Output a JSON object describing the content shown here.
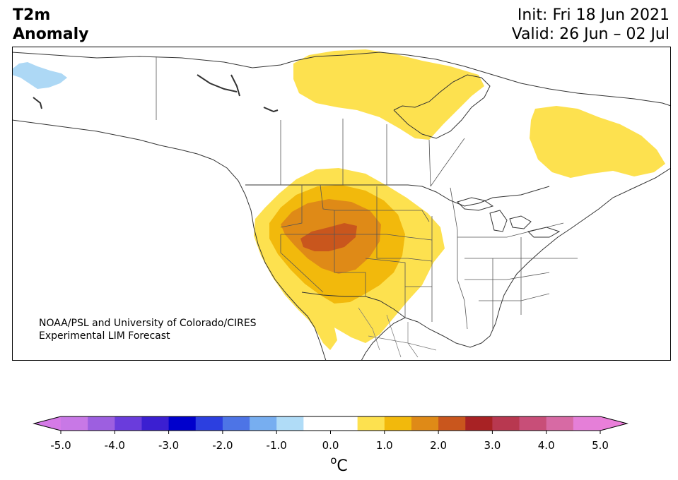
{
  "title": {
    "line1": "T2m",
    "line2": "Anomaly"
  },
  "dates": {
    "init": "Init: Fri 18 Jun 2021",
    "valid": "Valid: 26 Jun – 02 Jul"
  },
  "credit": {
    "line1": "NOAA/PSL and University of Colorado/CIRES",
    "line2": "Experimental LIM Forecast"
  },
  "colorbar": {
    "unit": "oC",
    "ticks": [
      "-5.0",
      "-4.0",
      "-3.0",
      "-2.0",
      "-1.0",
      "0.0",
      "1.0",
      "2.0",
      "3.0",
      "4.0",
      "5.0"
    ],
    "colors": [
      "#c878e6",
      "#9d5fe0",
      "#6a3cdc",
      "#3b1fd1",
      "#0000cc",
      "#2c3fe0",
      "#4d74e6",
      "#77aef0",
      "#b0dcf7",
      "#ffffff",
      "#ffffff",
      "#fde14f",
      "#f2b90c",
      "#df8a17",
      "#c9561d",
      "#a82224",
      "#b83850",
      "#c84e78",
      "#d76aa4",
      "#e57fd8"
    ],
    "extend_low": "#d57ae7",
    "extend_high": "#ea7fda"
  },
  "map_colors": {
    "light_yellow": "#fde14f",
    "yellow_orange": "#f2b90c",
    "orange": "#df8a17",
    "dark_orange": "#c9561d",
    "light_blue": "#add8f5"
  }
}
